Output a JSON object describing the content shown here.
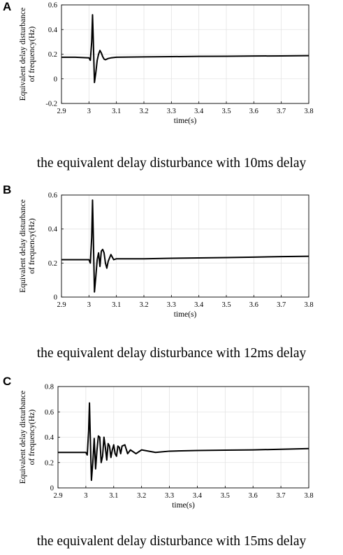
{
  "chart_data": [
    {
      "panel": "A",
      "type": "line",
      "title": "",
      "xlabel": "time(s)",
      "ylabel": [
        "Equivalent delay disturbance",
        "of frequency(Hz)"
      ],
      "xlim": [
        2.9,
        3.8
      ],
      "ylim": [
        -0.2,
        0.6
      ],
      "xticks": [
        "2.9",
        "3",
        "3.1",
        "3.2",
        "3.3",
        "3.4",
        "3.5",
        "3.6",
        "3.7",
        "3.8"
      ],
      "yticks": [
        "-0.2",
        "0",
        "0.2",
        "0.4",
        "0.6"
      ],
      "grid": true,
      "caption": "the equivalent delay disturbance with 10ms delay",
      "series": [
        {
          "x": [
            2.9,
            2.95,
            3.0,
            3.005,
            3.01,
            3.013,
            3.016,
            3.02,
            3.025,
            3.03,
            3.035,
            3.04,
            3.045,
            3.05,
            3.055,
            3.06,
            3.07,
            3.08,
            3.1,
            3.2,
            3.3,
            3.4,
            3.5,
            3.6,
            3.7,
            3.8
          ],
          "y": [
            0.175,
            0.175,
            0.17,
            0.15,
            0.3,
            0.52,
            0.3,
            -0.03,
            0.05,
            0.15,
            0.2,
            0.23,
            0.21,
            0.18,
            0.16,
            0.155,
            0.165,
            0.17,
            0.175,
            0.178,
            0.18,
            0.182,
            0.183,
            0.185,
            0.186,
            0.188
          ]
        }
      ]
    },
    {
      "panel": "B",
      "type": "line",
      "title": "",
      "xlabel": "time(s)",
      "ylabel": [
        "Equivalent delay disturbance",
        "of frequency(Hz)"
      ],
      "xlim": [
        2.9,
        3.8
      ],
      "ylim": [
        0,
        0.6
      ],
      "xticks": [
        "2.9",
        "3",
        "3.1",
        "3.2",
        "3.3",
        "3.4",
        "3.5",
        "3.6",
        "3.7",
        "3.8"
      ],
      "yticks": [
        "0",
        "0.2",
        "0.4",
        "0.6"
      ],
      "grid": true,
      "caption": "the equivalent delay disturbance with 12ms delay",
      "series": [
        {
          "x": [
            2.9,
            2.95,
            3.0,
            3.005,
            3.01,
            3.013,
            3.016,
            3.02,
            3.025,
            3.03,
            3.035,
            3.04,
            3.045,
            3.05,
            3.055,
            3.06,
            3.065,
            3.07,
            3.08,
            3.09,
            3.1,
            3.2,
            3.3,
            3.4,
            3.5,
            3.6,
            3.7,
            3.8
          ],
          "y": [
            0.22,
            0.22,
            0.22,
            0.2,
            0.35,
            0.57,
            0.35,
            0.03,
            0.12,
            0.22,
            0.26,
            0.18,
            0.27,
            0.28,
            0.26,
            0.2,
            0.17,
            0.21,
            0.25,
            0.22,
            0.225,
            0.225,
            0.228,
            0.23,
            0.232,
            0.235,
            0.238,
            0.24
          ]
        }
      ]
    },
    {
      "panel": "C",
      "type": "line",
      "title": "",
      "xlabel": "time(s)",
      "ylabel": [
        "Equivalent delay disturbance",
        "of frequency(Hz)"
      ],
      "xlim": [
        2.9,
        3.8
      ],
      "ylim": [
        0,
        0.8
      ],
      "xticks": [
        "2.9",
        "3",
        "3.1",
        "3.2",
        "3.3",
        "3.4",
        "3.5",
        "3.6",
        "3.7",
        "3.8"
      ],
      "yticks": [
        "0",
        "0.2",
        "0.4",
        "0.6",
        "0.8"
      ],
      "grid": true,
      "caption": "the equivalent delay disturbance with 15ms delay",
      "series": [
        {
          "x": [
            2.9,
            2.95,
            3.0,
            3.005,
            3.01,
            3.013,
            3.016,
            3.02,
            3.025,
            3.03,
            3.035,
            3.04,
            3.045,
            3.05,
            3.055,
            3.06,
            3.065,
            3.07,
            3.075,
            3.08,
            3.085,
            3.09,
            3.095,
            3.1,
            3.105,
            3.11,
            3.115,
            3.12,
            3.125,
            3.13,
            3.14,
            3.15,
            3.16,
            3.18,
            3.2,
            3.25,
            3.3,
            3.4,
            3.5,
            3.6,
            3.7,
            3.8
          ],
          "y": [
            0.28,
            0.28,
            0.28,
            0.26,
            0.45,
            0.67,
            0.4,
            0.06,
            0.2,
            0.39,
            0.15,
            0.3,
            0.41,
            0.4,
            0.2,
            0.25,
            0.4,
            0.32,
            0.22,
            0.35,
            0.33,
            0.24,
            0.3,
            0.34,
            0.27,
            0.25,
            0.33,
            0.32,
            0.27,
            0.33,
            0.34,
            0.27,
            0.3,
            0.27,
            0.3,
            0.28,
            0.29,
            0.295,
            0.298,
            0.3,
            0.305,
            0.31
          ]
        }
      ]
    }
  ]
}
